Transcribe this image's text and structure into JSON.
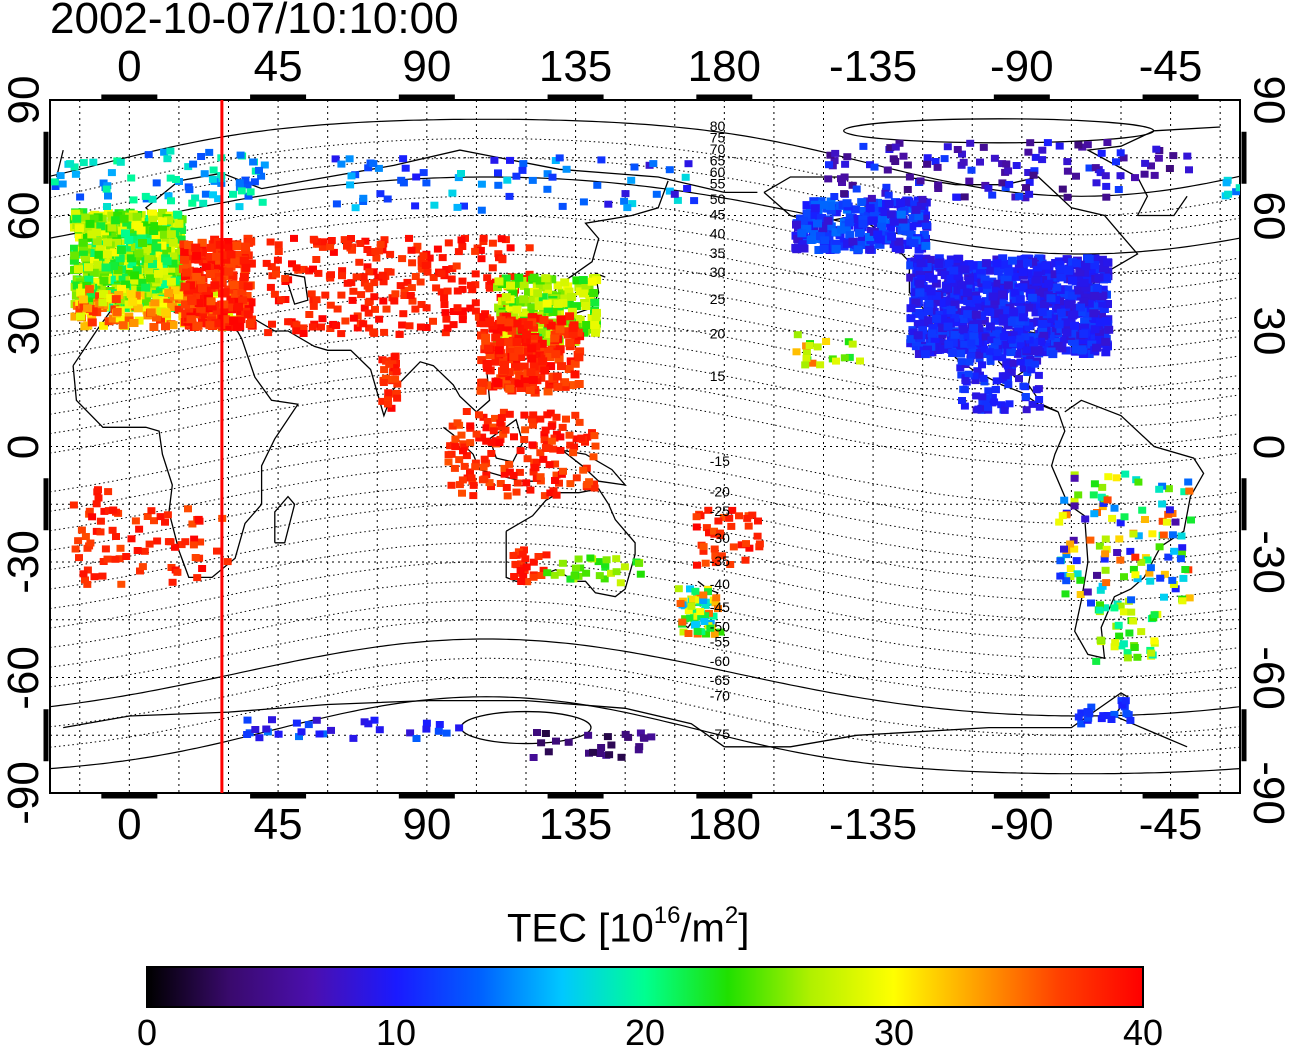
{
  "title": "2002-10-07/10:10:00",
  "x_ticks": [
    "0",
    "45",
    "90",
    "135",
    "180",
    "-135",
    "-90",
    "-45"
  ],
  "y_ticks": [
    "90",
    "60",
    "30",
    "0",
    "-30",
    "-60",
    "-90"
  ],
  "contour_labels": [
    "80",
    "75",
    "70",
    "65",
    "60",
    "55",
    "50",
    "45",
    "40",
    "35",
    "30",
    "25",
    "20",
    "15",
    "-15",
    "-20",
    "-25",
    "-30",
    "-35",
    "-40",
    "-45",
    "-50",
    "-55",
    "-60",
    "-65",
    "-70",
    "-75"
  ],
  "colorbar": {
    "title_main": "TEC  [10",
    "title_sup1": "16",
    "title_mid": "/m",
    "title_sup2": "2",
    "title_end": "]",
    "ticks": [
      "0",
      "10",
      "20",
      "30",
      "40"
    ],
    "colors": [
      "#000000",
      "#3a0a6e",
      "#4b0fb0",
      "#1a1aff",
      "#0060ff",
      "#00c8ff",
      "#00ff90",
      "#20e000",
      "#b0f000",
      "#ffff00",
      "#ffa000",
      "#ff4000",
      "#ff0000"
    ]
  },
  "marker_line_longitude": 28,
  "colors": {
    "marker_line": "#ff0000",
    "coast": "#000000",
    "grid": "#000000"
  }
}
